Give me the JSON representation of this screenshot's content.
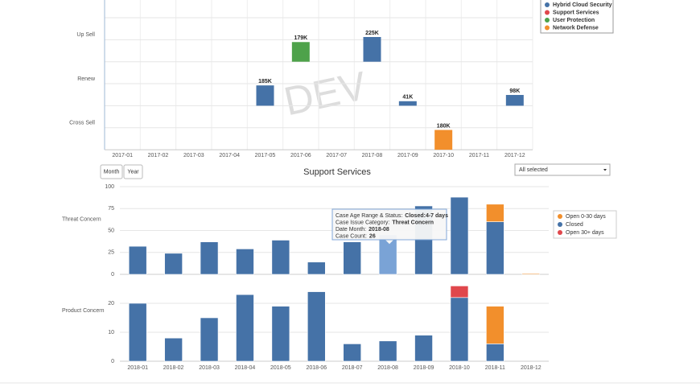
{
  "chart_data": [
    {
      "type": "row_bar",
      "watermark": "DEV",
      "categories": [
        "2017-01",
        "2017-02",
        "2017-03",
        "2017-04",
        "2017-05",
        "2017-06",
        "2017-07",
        "2017-08",
        "2017-09",
        "2017-10",
        "2017-11",
        "2017-12"
      ],
      "rows": [
        "Up Sell",
        "Renew",
        "Cross Sell"
      ],
      "series": [
        {
          "name": "Hybrid Cloud Security",
          "color": "#4572a7",
          "values": [
            null,
            null,
            null,
            null,
            185000,
            null,
            null,
            225000,
            41000,
            null,
            null,
            98000
          ],
          "value_labels": [
            null,
            null,
            null,
            null,
            "185K",
            null,
            null,
            "225K",
            "41K",
            null,
            null,
            "98K"
          ],
          "row": [
            null,
            null,
            null,
            null,
            "Renew",
            null,
            null,
            "Up Sell",
            "Renew",
            null,
            null,
            "Renew"
          ]
        },
        {
          "name": "Support Services",
          "color": "#e0474c",
          "values": [
            null,
            null,
            null,
            null,
            null,
            null,
            null,
            null,
            null,
            null,
            null,
            null
          ],
          "value_labels": [
            null,
            null,
            null,
            null,
            null,
            null,
            null,
            null,
            null,
            null,
            null,
            null
          ],
          "row": [
            null,
            null,
            null,
            null,
            null,
            null,
            null,
            null,
            null,
            null,
            null,
            null
          ]
        },
        {
          "name": "User Protection",
          "color": "#4ea24a",
          "values": [
            null,
            null,
            null,
            null,
            null,
            179000,
            null,
            null,
            null,
            null,
            null,
            null
          ],
          "value_labels": [
            null,
            null,
            null,
            null,
            null,
            "179K",
            null,
            null,
            null,
            null,
            null,
            null
          ],
          "row": [
            null,
            null,
            null,
            null,
            null,
            "Up Sell",
            null,
            null,
            null,
            null,
            null,
            null
          ]
        },
        {
          "name": "Network Defense",
          "color": "#f28f2c",
          "values": [
            null,
            null,
            null,
            null,
            null,
            null,
            null,
            null,
            null,
            180000,
            null,
            null
          ],
          "value_labels": [
            null,
            null,
            null,
            null,
            null,
            null,
            null,
            null,
            null,
            "180K",
            null,
            null
          ],
          "row": [
            null,
            null,
            null,
            null,
            null,
            null,
            null,
            null,
            null,
            "Cross Sell",
            null,
            null
          ]
        }
      ]
    },
    {
      "type": "stacked_bar",
      "title": "Support Services",
      "buttons": [
        "Month",
        "Year"
      ],
      "filter": "All selected",
      "categories": [
        "2018-01",
        "2018-02",
        "2018-03",
        "2018-04",
        "2018-05",
        "2018-06",
        "2018-07",
        "2018-08",
        "2018-09",
        "2018-10",
        "2018-11",
        "2018-12"
      ],
      "series": [
        {
          "name": "Open 0-30 days",
          "color": "#f28f2c"
        },
        {
          "name": "Closed",
          "color": "#4572a7"
        },
        {
          "name": "Open 30+ days",
          "color": "#e0474c"
        }
      ],
      "panels": [
        {
          "label": "Threat Concern",
          "ylim": [
            0,
            100
          ],
          "yticks": [
            0,
            25,
            50,
            75,
            100
          ],
          "values": [
            [
              null,
              null,
              null,
              null,
              null,
              null,
              null,
              null,
              null,
              null,
              20,
              1
            ],
            [
              32,
              24,
              37,
              29,
              39,
              14,
              37,
              45,
              78,
              88,
              60,
              null
            ],
            [
              null,
              null,
              null,
              null,
              null,
              null,
              null,
              null,
              null,
              null,
              null,
              null
            ]
          ]
        },
        {
          "label": "Product Concern",
          "ylim": [
            0,
            27
          ],
          "yticks": [
            0,
            10,
            20
          ],
          "values": [
            [
              null,
              null,
              null,
              null,
              null,
              null,
              null,
              null,
              null,
              null,
              13,
              null
            ],
            [
              20,
              8,
              15,
              23,
              19,
              24,
              6,
              7,
              9,
              22,
              6,
              null
            ],
            [
              null,
              null,
              null,
              null,
              null,
              null,
              null,
              null,
              null,
              4,
              null,
              null
            ]
          ]
        }
      ],
      "tooltip": [
        {
          "label": "Case Age Range & Status:",
          "value": "Closed:4-7 days"
        },
        {
          "label": "Case Issue Category:",
          "value": "Threat Concern"
        },
        {
          "label": "Date Month:",
          "value": "2018-08"
        },
        {
          "label": "Case Count:",
          "value": 26
        }
      ]
    }
  ]
}
